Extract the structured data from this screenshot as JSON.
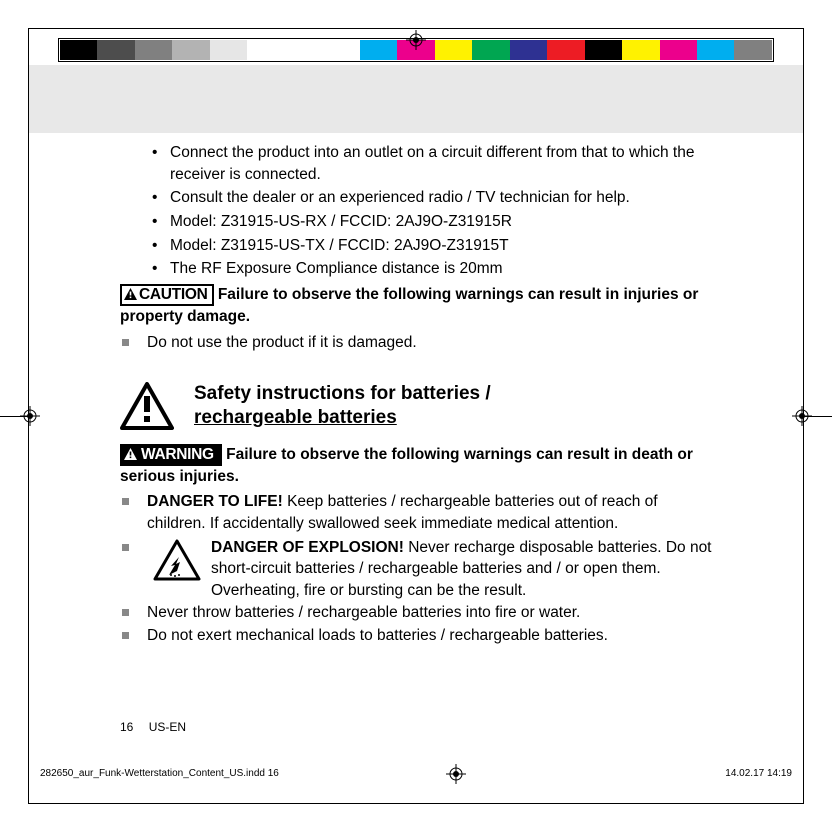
{
  "colorbar": [
    "#000000",
    "#4d4d4d",
    "#808080",
    "#b3b3b3",
    "#e6e6e6",
    "#ffffff",
    "#ffffff",
    "#ffffff",
    "#00aeef",
    "#ec008c",
    "#fff200",
    "#00a651",
    "#2e3192",
    "#ed1c24",
    "#000000",
    "#fff200",
    "#ec008c",
    "#00aeef",
    "#808080"
  ],
  "bullets": [
    "Connect the product into an outlet on a circuit different from that to which the receiver is connected.",
    "Consult the dealer or an experienced radio / TV technician for help.",
    "Model: Z31915-US-RX / FCCID: 2AJ9O-Z31915R",
    "Model: Z31915-US-TX / FCCID: 2AJ9O-Z31915T",
    "The RF Exposure Compliance distance is 20mm"
  ],
  "caution_label": "CAUTION",
  "caution_heading": "Failure to observe the following warnings can result in injuries or property damage.",
  "caution_item": "Do not use the product if it is damaged.",
  "section_title_l1": "Safety instructions for batteries /",
  "section_title_l2": "rechargeable batteries",
  "warning_label": "WARNING",
  "warning_heading": "Failure to observe the following warnings can result in death or serious injuries.",
  "danger_life_lead": "DANGER TO LIFE!",
  "danger_life_text": " Keep batteries / rechargeable batteries out of reach of children. If accidentally swallowed seek immediate medical attention.",
  "danger_exp_lead": "DANGER OF EXPLOSION!",
  "danger_exp_text": " Never recharge disposable batteries. Do not short-circuit batteries / rechargeable batteries and / or open them. Overheating, fire or bursting can be the result.",
  "warn_item2": "Never throw batteries / rechargeable batteries into fire or water.",
  "warn_item3": "Do not exert mechanical loads to batteries / rechargeable batteries.",
  "page_number": "16",
  "page_locale": "US-EN",
  "print_file": "282650_aur_Funk-Wetterstation_Content_US.indd   16",
  "print_date": "14.02.17   14:19"
}
